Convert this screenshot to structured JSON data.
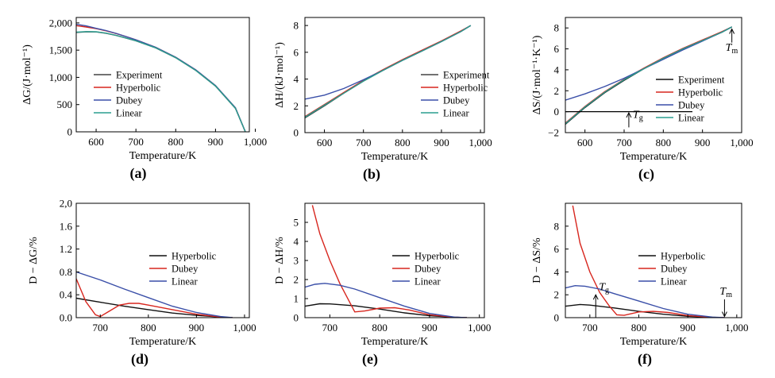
{
  "chart_data": [
    {
      "id": "a",
      "type": "line",
      "panel_label": "(a)",
      "xlabel": "Temperature/K",
      "ylabel": "ΔG/(J·mol⁻¹)",
      "xlim": [
        550,
        985
      ],
      "ylim": [
        0,
        2100
      ],
      "xticks": [
        600,
        700,
        800,
        900,
        1000
      ],
      "xtick_labels": [
        "600",
        "700",
        "800",
        "900",
        "1,000"
      ],
      "yticks": [
        0,
        500,
        1000,
        1500,
        2000
      ],
      "ytick_labels": [
        "0",
        "500",
        "1,000",
        "1,500",
        "2,000"
      ],
      "legend": {
        "position": "center-left",
        "items": [
          "Experiment",
          "Hyperbolic",
          "Dubey",
          "Linear"
        ]
      },
      "series": [
        {
          "name": "Experiment",
          "color": "#444444",
          "x": [
            550,
            575,
            600,
            625,
            650,
            675,
            700,
            750,
            800,
            850,
            900,
            950,
            975
          ],
          "y": [
            1825,
            1838,
            1835,
            1810,
            1770,
            1722,
            1670,
            1540,
            1360,
            1130,
            840,
            430,
            0
          ]
        },
        {
          "name": "Hyperbolic",
          "color": "#d7261e",
          "x": [
            550,
            575,
            600,
            625,
            650,
            675,
            700,
            750,
            800,
            850,
            900,
            950,
            975
          ],
          "y": [
            1950,
            1925,
            1895,
            1855,
            1805,
            1750,
            1690,
            1550,
            1370,
            1140,
            850,
            440,
            0
          ]
        },
        {
          "name": "Dubey",
          "color": "#3a4fa8",
          "x": [
            550,
            575,
            600,
            625,
            650,
            675,
            700,
            750,
            800,
            850,
            900,
            950,
            975
          ],
          "y": [
            1975,
            1945,
            1900,
            1860,
            1808,
            1750,
            1690,
            1550,
            1370,
            1140,
            850,
            440,
            0
          ]
        },
        {
          "name": "Linear",
          "color": "#2a9d8f",
          "x": [
            550,
            575,
            600,
            625,
            650,
            675,
            700,
            750,
            800,
            850,
            900,
            950,
            975
          ],
          "y": [
            1830,
            1840,
            1838,
            1812,
            1772,
            1724,
            1672,
            1542,
            1362,
            1132,
            842,
            432,
            0
          ]
        }
      ]
    },
    {
      "id": "b",
      "type": "line",
      "panel_label": "(b)",
      "xlabel": "Temperature/K",
      "ylabel": "ΔH/(kJ·mol⁻¹)",
      "xlim": [
        550,
        1010
      ],
      "ylim": [
        0,
        8.6
      ],
      "xticks": [
        600,
        700,
        800,
        900,
        1000
      ],
      "xtick_labels": [
        "600",
        "700",
        "800",
        "900",
        "1,000"
      ],
      "yticks": [
        0,
        2,
        4,
        6,
        8
      ],
      "ytick_labels": [
        "0",
        "2",
        "4",
        "6",
        "8"
      ],
      "legend": {
        "position": "center-right",
        "items": [
          "Experiment",
          "Hyperbolic",
          "Dubey",
          "Linear"
        ]
      },
      "series": [
        {
          "name": "Experiment",
          "color": "#444444",
          "x": [
            550,
            600,
            650,
            700,
            750,
            800,
            850,
            900,
            950,
            975
          ],
          "y": [
            1.1,
            2.0,
            2.95,
            3.85,
            4.65,
            5.4,
            6.1,
            6.8,
            7.55,
            8.0
          ]
        },
        {
          "name": "Hyperbolic",
          "color": "#d7261e",
          "x": [
            550,
            600,
            650,
            700,
            750,
            800,
            850,
            900,
            950,
            975
          ],
          "y": [
            1.2,
            2.1,
            3.0,
            3.9,
            4.7,
            5.45,
            6.15,
            6.85,
            7.6,
            8.0
          ]
        },
        {
          "name": "Dubey",
          "color": "#3a4fa8",
          "x": [
            550,
            600,
            650,
            700,
            750,
            800,
            850,
            900,
            950,
            975
          ],
          "y": [
            2.5,
            2.8,
            3.3,
            3.95,
            4.65,
            5.4,
            6.1,
            6.8,
            7.55,
            8.0
          ]
        },
        {
          "name": "Linear",
          "color": "#2a9d8f",
          "x": [
            550,
            600,
            650,
            700,
            750,
            800,
            850,
            900,
            950,
            975
          ],
          "y": [
            1.15,
            2.05,
            2.95,
            3.85,
            4.65,
            5.4,
            6.1,
            6.8,
            7.55,
            8.0
          ]
        }
      ]
    },
    {
      "id": "c",
      "type": "line",
      "panel_label": "(c)",
      "xlabel": "Temperature/K",
      "ylabel": "ΔS/(J·mol⁻¹·K⁻¹)",
      "xlim": [
        550,
        1000
      ],
      "ylim": [
        -2,
        9
      ],
      "xticks": [
        600,
        700,
        800,
        900,
        1000
      ],
      "xtick_labels": [
        "600",
        "700",
        "800",
        "900",
        "1,000"
      ],
      "yticks": [
        -2,
        0,
        2,
        4,
        6,
        8
      ],
      "ytick_labels": [
        "−2",
        "0",
        "2",
        "4",
        "6",
        "8"
      ],
      "legend": {
        "position": "center-right",
        "items": [
          "Experiment",
          "Hyperbolic",
          "Dubey",
          "Linear"
        ]
      },
      "annotations": [
        {
          "text": "Tg",
          "x": 712,
          "y": -0.9
        },
        {
          "text": "Tm",
          "x": 975,
          "y": 7.0
        }
      ],
      "series": [
        {
          "name": "Experiment",
          "color": "#111111",
          "x": [
            550,
            600,
            650,
            700,
            750,
            800,
            850,
            900,
            950,
            975
          ],
          "y": [
            -1.2,
            0.4,
            1.8,
            3.0,
            4.1,
            5.1,
            6.0,
            6.8,
            7.6,
            8.1
          ]
        },
        {
          "name": "Hyperbolic",
          "color": "#d7261e",
          "x": [
            550,
            600,
            650,
            700,
            750,
            800,
            850,
            900,
            950,
            975
          ],
          "y": [
            -1.1,
            0.5,
            1.9,
            3.1,
            4.15,
            5.15,
            6.05,
            6.85,
            7.65,
            8.1
          ]
        },
        {
          "name": "Dubey",
          "color": "#3a4fa8",
          "x": [
            550,
            600,
            650,
            700,
            750,
            800,
            850,
            900,
            950,
            975
          ],
          "y": [
            1.1,
            1.7,
            2.4,
            3.2,
            4.1,
            5.0,
            5.9,
            6.75,
            7.6,
            8.1
          ]
        },
        {
          "name": "Linear",
          "color": "#2a9d8f",
          "x": [
            550,
            600,
            650,
            700,
            750,
            800,
            850,
            900,
            950,
            975
          ],
          "y": [
            -1.15,
            0.45,
            1.85,
            3.05,
            4.1,
            5.1,
            6.0,
            6.8,
            7.6,
            8.1
          ]
        }
      ]
    },
    {
      "id": "d",
      "type": "line",
      "panel_label": "(d)",
      "xlabel": "Temperature/K",
      "ylabel": "D − ΔG/%",
      "xlim": [
        650,
        1010
      ],
      "ylim": [
        0,
        2.0
      ],
      "xticks": [
        700,
        800,
        900,
        1000
      ],
      "xtick_labels": [
        "700",
        "800",
        "900",
        "1,000"
      ],
      "yticks": [
        0,
        0.4,
        0.8,
        1.2,
        1.6,
        2.0
      ],
      "ytick_labels": [
        "0.0",
        "0.4",
        "0.8",
        "1.2",
        "1.6",
        "2,0"
      ],
      "legend": {
        "position": "center-right",
        "items": [
          "Hyperbolic",
          "Dubey",
          "Linear"
        ]
      },
      "series": [
        {
          "name": "Hyperbolic",
          "color": "#111111",
          "x": [
            650,
            700,
            750,
            800,
            850,
            900,
            950,
            975
          ],
          "y": [
            0.34,
            0.27,
            0.2,
            0.14,
            0.08,
            0.04,
            0.01,
            0.0
          ]
        },
        {
          "name": "Dubey",
          "color": "#d7261e",
          "x": [
            650,
            670,
            690,
            700,
            720,
            740,
            760,
            780,
            800,
            850,
            900,
            950,
            975
          ],
          "y": [
            0.68,
            0.28,
            0.05,
            0.02,
            0.12,
            0.22,
            0.25,
            0.25,
            0.22,
            0.14,
            0.06,
            0.01,
            0.0
          ]
        },
        {
          "name": "Linear",
          "color": "#3a4fa8",
          "x": [
            650,
            700,
            750,
            800,
            850,
            900,
            950,
            975
          ],
          "y": [
            0.8,
            0.66,
            0.5,
            0.35,
            0.2,
            0.09,
            0.02,
            0.0
          ]
        }
      ]
    },
    {
      "id": "e",
      "type": "line",
      "panel_label": "(e)",
      "xlabel": "Temperature/K",
      "ylabel": "D − ΔH/%",
      "xlim": [
        650,
        1010
      ],
      "ylim": [
        0,
        6
      ],
      "xticks": [
        700,
        800,
        900,
        1000
      ],
      "xtick_labels": [
        "700",
        "800",
        "900",
        "1,000"
      ],
      "yticks": [
        0,
        1,
        2,
        3,
        4,
        5
      ],
      "ytick_labels": [
        "0",
        "1",
        "2",
        "3",
        "4",
        "5"
      ],
      "legend": {
        "position": "center-right",
        "items": [
          "Hyperbolic",
          "Dubey",
          "Linear"
        ]
      },
      "series": [
        {
          "name": "Hyperbolic",
          "color": "#111111",
          "x": [
            650,
            680,
            700,
            750,
            800,
            850,
            900,
            950,
            975
          ],
          "y": [
            0.6,
            0.73,
            0.72,
            0.62,
            0.45,
            0.25,
            0.1,
            0.02,
            0.0
          ]
        },
        {
          "name": "Dubey",
          "color": "#d7261e",
          "x": [
            665,
            680,
            700,
            720,
            740,
            750,
            770,
            800,
            830,
            860,
            900,
            950,
            975
          ],
          "y": [
            5.9,
            4.4,
            3.0,
            1.8,
            0.8,
            0.3,
            0.35,
            0.5,
            0.52,
            0.4,
            0.15,
            0.02,
            0.0
          ]
        },
        {
          "name": "Linear",
          "color": "#3a4fa8",
          "x": [
            650,
            670,
            690,
            720,
            750,
            800,
            850,
            900,
            950,
            975
          ],
          "y": [
            1.6,
            1.75,
            1.8,
            1.7,
            1.5,
            1.05,
            0.6,
            0.22,
            0.03,
            0.0
          ]
        }
      ]
    },
    {
      "id": "f",
      "type": "line",
      "panel_label": "(f)",
      "xlabel": "Temperature/K",
      "ylabel": "D − ΔS/%",
      "xlim": [
        650,
        1010
      ],
      "ylim": [
        0,
        10
      ],
      "xticks": [
        700,
        800,
        900,
        1000
      ],
      "xtick_labels": [
        "700",
        "800",
        "900",
        "1,000"
      ],
      "yticks": [
        0,
        2,
        4,
        6,
        8
      ],
      "ytick_labels": [
        "0",
        "2",
        "4",
        "6",
        "8"
      ],
      "legend": {
        "position": "center-right",
        "items": [
          "Hyperbolic",
          "Dubey",
          "Linear"
        ]
      },
      "annotations": [
        {
          "text": "Tg",
          "x": 712,
          "y": 2.0
        },
        {
          "text": "Tm",
          "x": 975,
          "y": 2.0
        }
      ],
      "series": [
        {
          "name": "Hyperbolic",
          "color": "#111111",
          "x": [
            650,
            680,
            700,
            750,
            800,
            850,
            900,
            950,
            975
          ],
          "y": [
            1.0,
            1.15,
            1.1,
            0.85,
            0.55,
            0.3,
            0.12,
            0.03,
            0.0
          ]
        },
        {
          "name": "Dubey",
          "color": "#d7261e",
          "x": [
            665,
            680,
            700,
            720,
            740,
            755,
            770,
            800,
            830,
            860,
            900,
            950,
            975
          ],
          "y": [
            9.8,
            6.5,
            4.0,
            2.2,
            1.0,
            0.25,
            0.2,
            0.5,
            0.55,
            0.45,
            0.18,
            0.03,
            0.0
          ]
        },
        {
          "name": "Linear",
          "color": "#3a4fa8",
          "x": [
            650,
            670,
            690,
            720,
            750,
            800,
            850,
            900,
            950,
            975
          ],
          "y": [
            2.6,
            2.8,
            2.75,
            2.5,
            2.1,
            1.45,
            0.8,
            0.3,
            0.05,
            0.0
          ]
        }
      ]
    }
  ]
}
